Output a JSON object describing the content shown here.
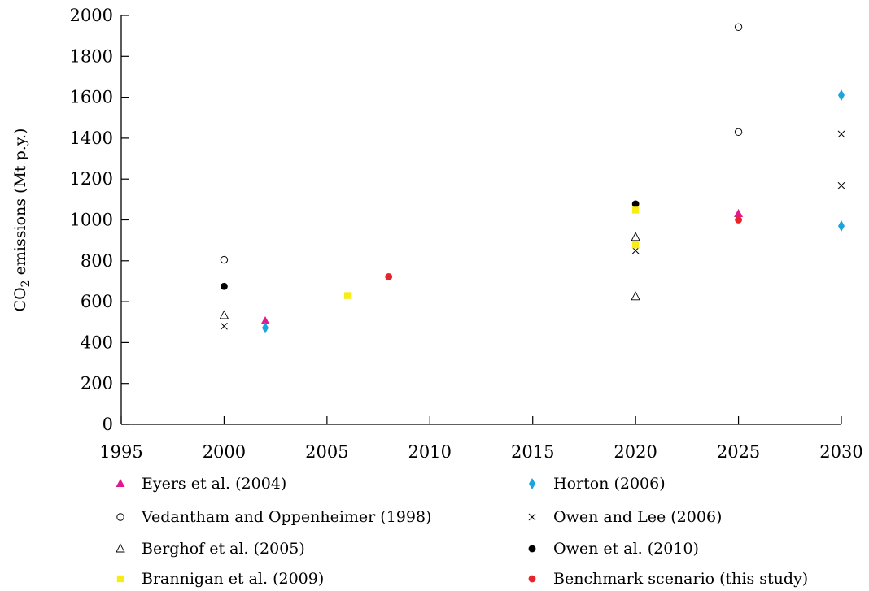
{
  "chart_data": {
    "type": "scatter",
    "title": "",
    "xlabel": "",
    "ylabel": "CO2 emissions (Mt p.y.)",
    "ylabel_parts": {
      "main": "CO",
      "sub": "2",
      "rest": " emissions (Mt p.y.)"
    },
    "xlim": [
      1995,
      2030
    ],
    "ylim": [
      0,
      2000
    ],
    "x_ticks": [
      1995,
      2000,
      2005,
      2010,
      2015,
      2020,
      2025,
      2030
    ],
    "y_ticks": [
      0,
      200,
      400,
      600,
      800,
      1000,
      1200,
      1400,
      1600,
      1800,
      2000
    ],
    "grid": false,
    "legend_position": "bottom",
    "series": [
      {
        "name": "Eyers et al. (2004)",
        "marker": "filled-triangle",
        "color": "#e2188f",
        "points": [
          [
            2002,
            505
          ],
          [
            2025,
            1030
          ]
        ]
      },
      {
        "name": "Horton (2006)",
        "marker": "filled-diamond",
        "color": "#1aa6dd",
        "points": [
          [
            2002,
            472
          ],
          [
            2030,
            1610
          ],
          [
            2030,
            970
          ]
        ]
      },
      {
        "name": "Vedantham and Oppenheimer (1998)",
        "marker": "open-circle",
        "color": "#000000",
        "points": [
          [
            2000,
            805
          ],
          [
            2025,
            1943
          ],
          [
            2025,
            1430
          ]
        ]
      },
      {
        "name": "Owen and Lee (2006)",
        "marker": "cross",
        "color": "#000000",
        "points": [
          [
            2000,
            480
          ],
          [
            2020,
            850
          ],
          [
            2030,
            1420
          ],
          [
            2030,
            1168
          ]
        ]
      },
      {
        "name": "Berghof et al. (2005)",
        "marker": "open-triangle",
        "color": "#000000",
        "points": [
          [
            2000,
            533
          ],
          [
            2020,
            915
          ],
          [
            2020,
            625
          ]
        ]
      },
      {
        "name": "Owen et al. (2010)",
        "marker": "filled-circle",
        "color": "#000000",
        "points": [
          [
            2000,
            675
          ],
          [
            2020,
            1078
          ]
        ]
      },
      {
        "name": "Brannigan et al. (2009)",
        "marker": "filled-square",
        "color": "#f7ec13",
        "points": [
          [
            2006,
            630
          ],
          [
            2020,
            1048
          ],
          [
            2020,
            878
          ]
        ]
      },
      {
        "name": "Benchmark scenario (this study)",
        "marker": "filled-circle",
        "color": "#e8242b",
        "points": [
          [
            2008,
            722
          ],
          [
            2025,
            1000
          ]
        ]
      }
    ]
  }
}
